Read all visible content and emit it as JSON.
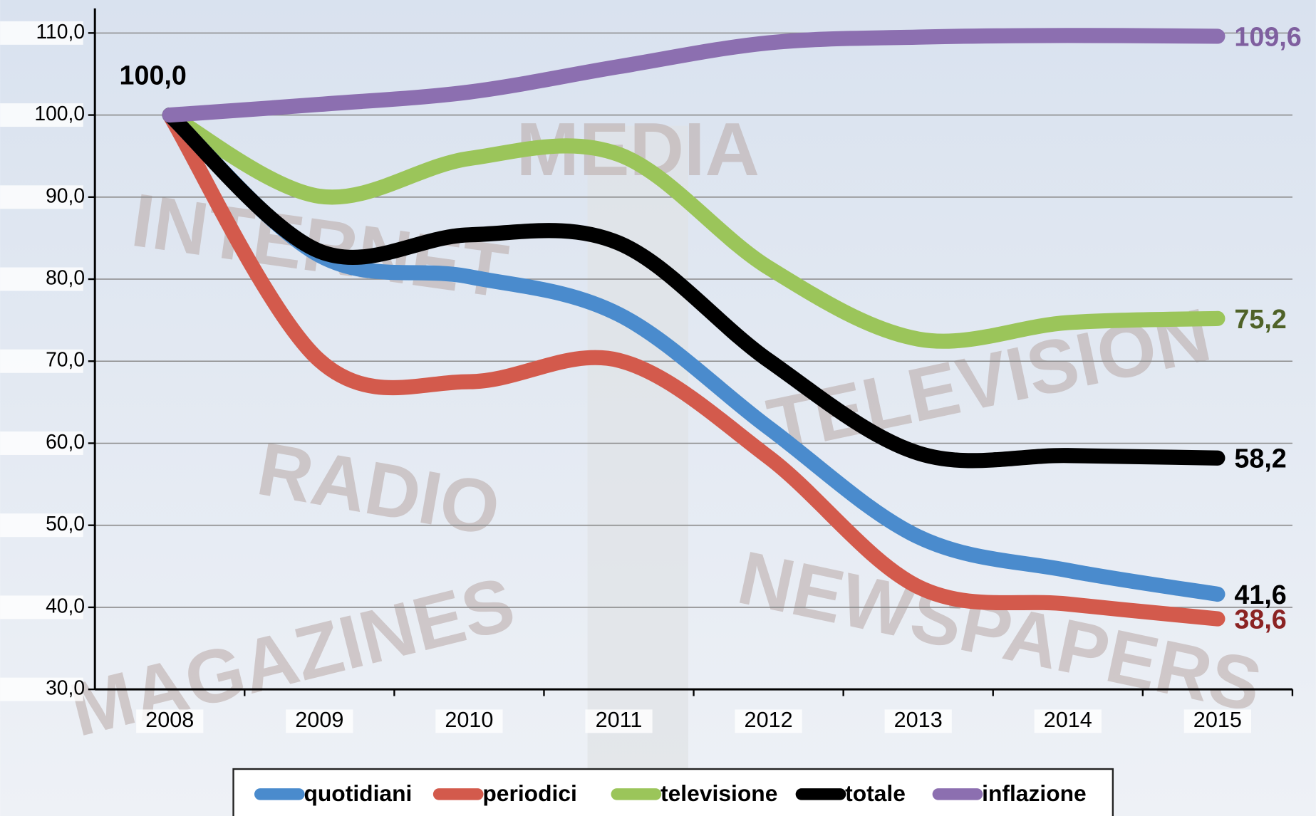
{
  "chart_data": {
    "type": "line",
    "background_signs": [
      "MEDIA",
      "INTERNET",
      "TELEVISION",
      "RADIO",
      "NEWSPAPERS",
      "MAGAZINES"
    ],
    "categories": [
      "2008",
      "2009",
      "2010",
      "2011",
      "2012",
      "2013",
      "2014",
      "2015"
    ],
    "ylim": [
      30,
      113
    ],
    "yticks": [
      {
        "value": 30,
        "label": "30,0"
      },
      {
        "value": 40,
        "label": "40,0"
      },
      {
        "value": 50,
        "label": "50,0"
      },
      {
        "value": 60,
        "label": "60,0"
      },
      {
        "value": 70,
        "label": "70,0"
      },
      {
        "value": 80,
        "label": "80,0"
      },
      {
        "value": 90,
        "label": "90,0"
      },
      {
        "value": 100,
        "label": "100,0"
      },
      {
        "value": 110,
        "label": "110,0"
      }
    ],
    "grid": true,
    "legend": "bottom",
    "series": [
      {
        "name": "quotidiani",
        "color": "#4a8bcd",
        "label_color": "#000000",
        "values": [
          100,
          82.9,
          80.3,
          75.7,
          61.9,
          48.6,
          44.5,
          41.6
        ],
        "value_labels": [
          null,
          null,
          null,
          null,
          null,
          null,
          null,
          "41,6"
        ]
      },
      {
        "name": "periodici",
        "color": "#d35a4c",
        "label_color": "#8b2323",
        "values": [
          100,
          70.1,
          67.5,
          70.1,
          58.3,
          42.5,
          40.4,
          38.6
        ],
        "value_labels": [
          null,
          null,
          null,
          null,
          null,
          null,
          null,
          "38,6"
        ]
      },
      {
        "name": "televisione",
        "color": "#9bc55a",
        "label_color": "#4f6228",
        "values": [
          100,
          90.1,
          94.7,
          95.2,
          81.4,
          72.7,
          74.7,
          75.2
        ],
        "value_labels": [
          null,
          null,
          null,
          null,
          null,
          null,
          null,
          "75,2"
        ]
      },
      {
        "name": "totale",
        "color": "#000000",
        "label_color": "#000000",
        "values": [
          100,
          83.4,
          85.4,
          84.4,
          70.1,
          58.8,
          58.5,
          58.2
        ],
        "value_labels": [
          "100,0",
          null,
          null,
          null,
          null,
          null,
          null,
          "58,2"
        ]
      },
      {
        "name": "inflazione",
        "color": "#8c6fb0",
        "label_color": "#7f5f9f",
        "values": [
          100,
          101.3,
          102.8,
          105.9,
          108.8,
          109.5,
          109.7,
          109.6
        ],
        "value_labels": [
          null,
          null,
          null,
          null,
          null,
          null,
          null,
          "109,6"
        ]
      }
    ]
  }
}
